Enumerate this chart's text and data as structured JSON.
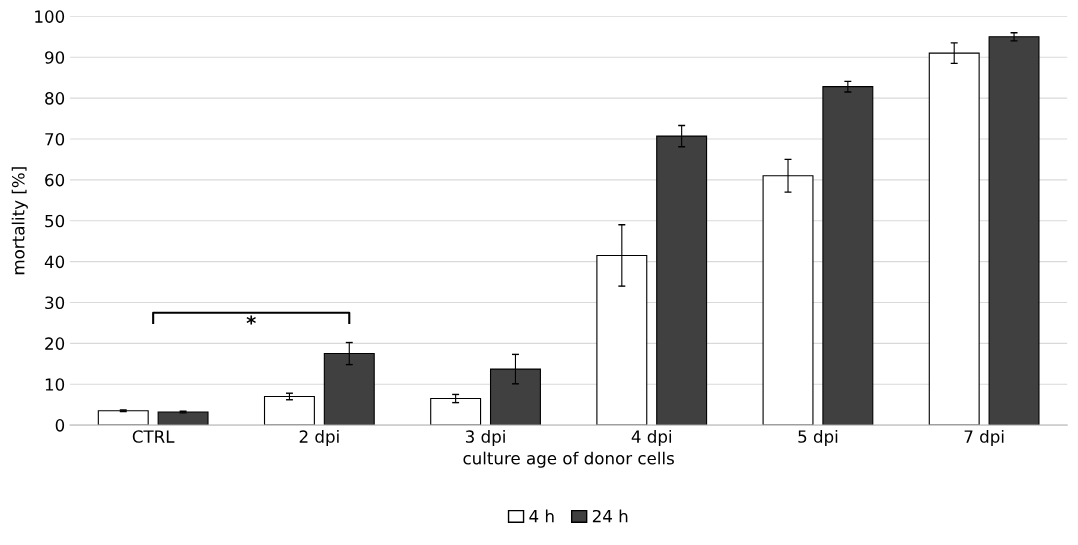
{
  "chart_data": {
    "type": "bar",
    "xlabel": "culture age of donor cells",
    "ylabel": "mortality [%]",
    "categories": [
      "CTRL",
      "2 dpi",
      "3 dpi",
      "4 dpi",
      "5 dpi",
      "7 dpi"
    ],
    "series": [
      {
        "name": "4 h",
        "color": "#ffffff",
        "values": [
          3.5,
          7,
          6.5,
          41.5,
          61,
          91
        ],
        "errors": [
          0.2,
          0.8,
          1,
          7.5,
          4,
          2.5
        ]
      },
      {
        "name": "24 h",
        "color": "#404040",
        "values": [
          3.2,
          17.5,
          13.7,
          70.7,
          82.8,
          95
        ],
        "errors": [
          0.2,
          2.7,
          3.6,
          2.6,
          1.3,
          1
        ]
      }
    ],
    "ylim": [
      0,
      100
    ],
    "yticks": [
      0,
      10,
      20,
      30,
      40,
      50,
      60,
      70,
      80,
      90,
      100
    ],
    "grid": "y",
    "legend": "bottom",
    "annotations": [
      "*"
    ]
  }
}
